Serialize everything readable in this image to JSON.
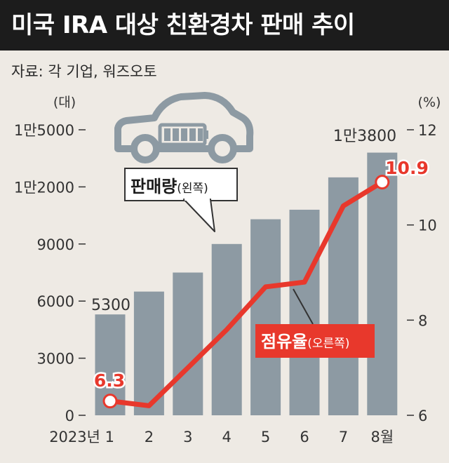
{
  "title": "미국 IRA 대상 친환경차 판매 추이",
  "source": "자료: 각 기업, 워즈오토",
  "colors": {
    "bar": "#8d9aa3",
    "line": "#e8382c",
    "background": "#eeeae4",
    "title_bg": "#1c1c1c"
  },
  "icons": [
    "electric-car-icon",
    "battery-icon"
  ],
  "chart_data": {
    "type": "bar",
    "categories": [
      "2023년 1",
      "2",
      "3",
      "4",
      "5",
      "6",
      "7",
      "8월"
    ],
    "series": [
      {
        "name": "판매량(왼쪽)",
        "type": "bar",
        "axis": "left",
        "values": [
          5300,
          6500,
          7500,
          9000,
          10300,
          10800,
          12500,
          13800
        ]
      },
      {
        "name": "점유율(오른쪽)",
        "type": "line",
        "axis": "right",
        "values": [
          6.3,
          6.2,
          7.0,
          7.8,
          8.7,
          8.8,
          10.4,
          10.9
        ]
      }
    ],
    "left_axis": {
      "unit": "(대)",
      "ticks": [
        0,
        3000,
        6000,
        9000,
        12000,
        15000
      ],
      "tick_labels": [
        "0",
        "3000",
        "6000",
        "9000",
        "1만2000",
        "1만5000"
      ],
      "ylim": [
        0,
        15000
      ]
    },
    "right_axis": {
      "unit": "(%)",
      "ticks": [
        6,
        8,
        10,
        12
      ],
      "tick_labels": [
        "6",
        "8",
        "10",
        "12"
      ],
      "ylim": [
        6,
        12
      ]
    },
    "annotations": {
      "first_bar": "5300",
      "last_bar": "1만3800",
      "first_line": "6.3",
      "last_line": "10.9"
    },
    "bar_callout": "판매량",
    "bar_callout_suffix": "(왼쪽)",
    "line_callout": "점유율",
    "line_callout_suffix": "(오른쪽)",
    "grid": false
  }
}
